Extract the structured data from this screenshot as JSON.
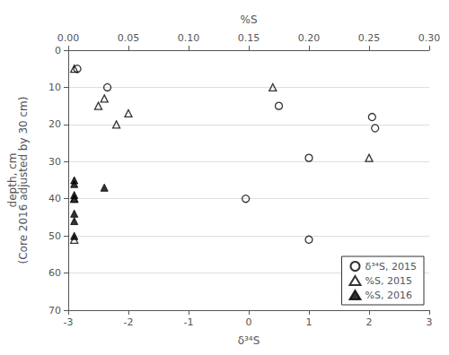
{
  "chart_data": {
    "type": "scatter",
    "xlabel": "δ³⁴S",
    "x2label": "%S",
    "ylabel": "depth, cm\n(Core 2016 adjusted by 30 cm)",
    "xlim": [
      -3,
      3
    ],
    "xticks": [
      -3,
      -2,
      -1,
      0,
      1,
      2,
      3
    ],
    "x2lim": [
      0.0,
      0.3
    ],
    "x2ticks": [
      {
        "value": 0.0,
        "label": "0.00"
      },
      0.05,
      {
        "value": 0.1,
        "label": "0.10"
      },
      0.15,
      {
        "value": 0.2,
        "label": "0.20"
      },
      0.25,
      {
        "value": 0.3,
        "label": "0.30"
      }
    ],
    "ylim": [
      70,
      0
    ],
    "yticks": [
      0,
      10,
      20,
      30,
      40,
      50,
      60,
      70
    ],
    "grid": "y",
    "legend": "lower right",
    "series": [
      {
        "name": "δ³⁴S, 2015",
        "color": "#000000",
        "marker": "circle-open",
        "x": [
          -2.85,
          -2.35,
          0.5,
          1.0,
          2.05,
          2.1,
          -0.05,
          1.0
        ],
        "values": [
          5,
          10,
          15,
          29,
          18,
          21,
          40,
          51
        ]
      },
      {
        "name": "%S, 2015",
        "color": "#000000",
        "marker": "triangle-open",
        "axis": "x2",
        "x": [
          0.005,
          0.03,
          0.025,
          0.05,
          0.04,
          0.17,
          0.005,
          0.005,
          0.25
        ],
        "values": [
          5,
          13,
          15,
          17,
          20,
          10,
          40,
          51,
          29
        ]
      },
      {
        "name": "%S, 2016",
        "color": "#000000",
        "marker": "triangle",
        "axis": "x2",
        "x": [
          0.005,
          0.005,
          0.005,
          0.005,
          0.005,
          0.005,
          0.005,
          0.03
        ],
        "values": [
          35,
          36,
          39,
          40,
          44,
          46,
          50,
          37
        ]
      }
    ]
  }
}
